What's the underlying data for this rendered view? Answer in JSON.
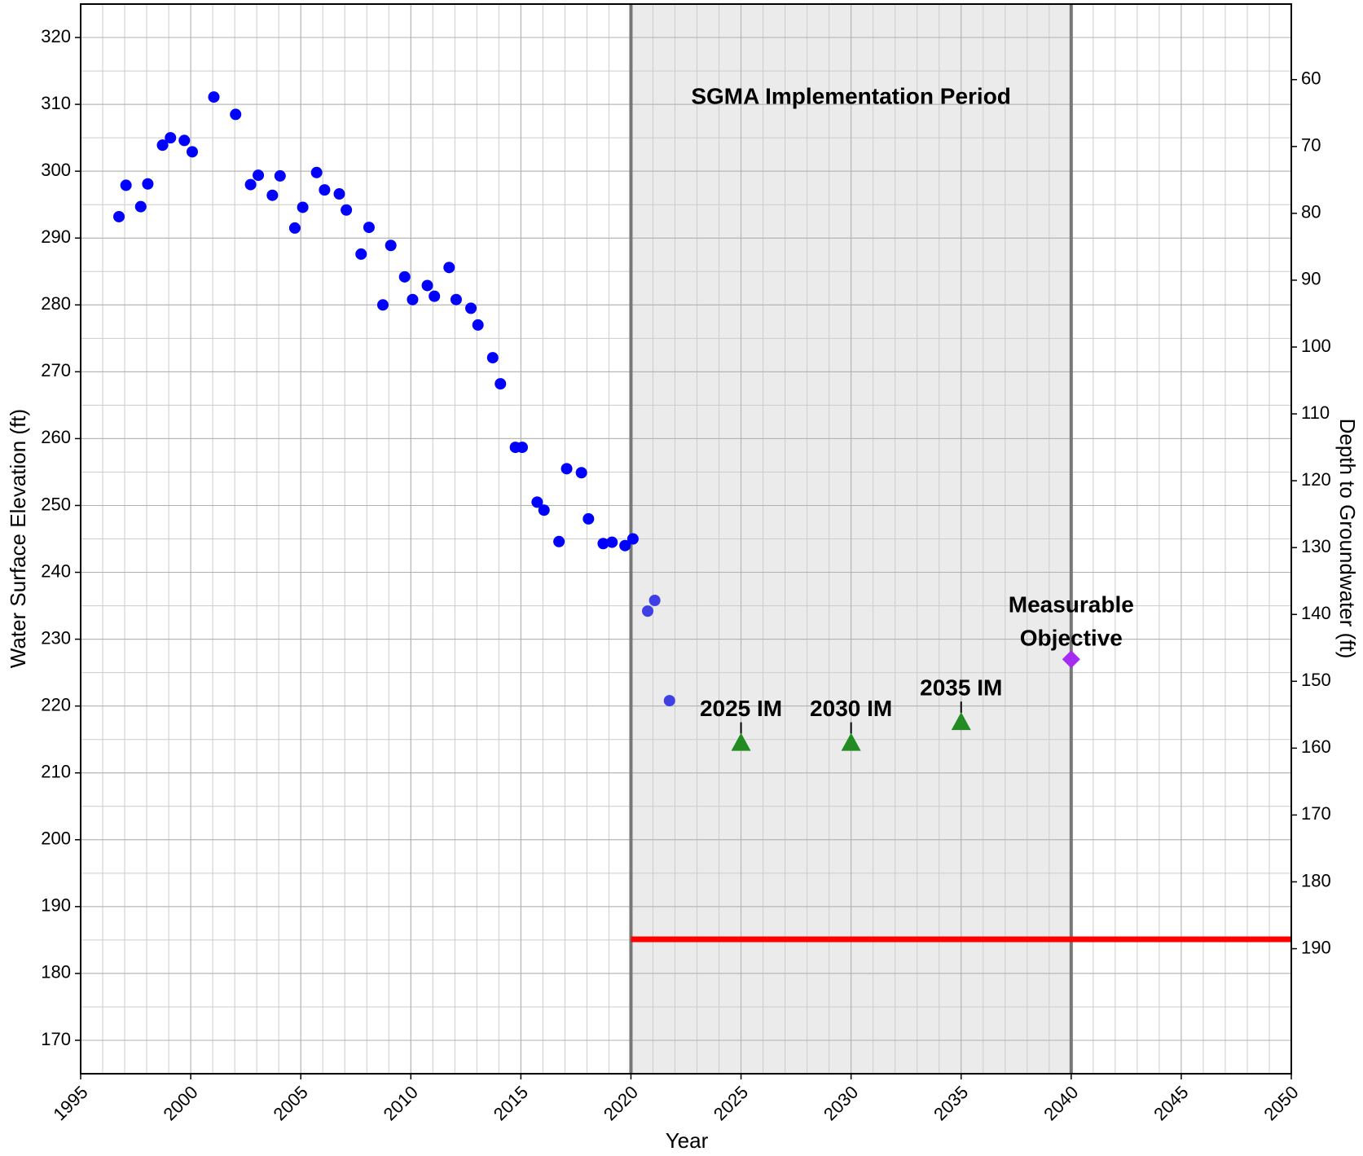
{
  "chart_data": {
    "type": "scatter",
    "xlabel": "Year",
    "ylabel": "Water Surface Elevation (ft)",
    "y2label": "Depth to Groundwater (ft)",
    "xlim": [
      1995,
      2050
    ],
    "ylim": [
      165,
      325
    ],
    "y2lim": [
      48.7,
      208.7
    ],
    "y2_inverted": true,
    "xticks": [
      1995,
      2000,
      2005,
      2010,
      2015,
      2020,
      2025,
      2030,
      2035,
      2040,
      2045,
      2050
    ],
    "yticks": [
      170,
      180,
      190,
      200,
      210,
      220,
      230,
      240,
      250,
      260,
      270,
      280,
      290,
      300,
      310,
      320
    ],
    "y2ticks": [
      60,
      70,
      80,
      90,
      100,
      110,
      120,
      130,
      140,
      150,
      160,
      170,
      180,
      190
    ],
    "grid": true,
    "minor_grid": {
      "x": 1,
      "y": 5
    },
    "series": [
      {
        "color": "#0000ff",
        "x": [
          1996.74,
          1997.06,
          1997.73,
          1998.05,
          1998.72,
          1999.08,
          1999.71,
          2000.07,
          2001.05,
          2002.04,
          2002.72,
          2003.07,
          2003.71,
          2004.06,
          2004.73,
          2005.09,
          2005.72,
          2006.08,
          2006.75,
          2007.07,
          2007.74,
          2008.1,
          2008.73,
          2009.09,
          2009.72,
          2010.08,
          2010.75,
          2011.07,
          2011.74,
          2012.06,
          2012.73,
          2013.05,
          2013.72,
          2014.07,
          2014.75,
          2015.06,
          2015.74,
          2016.05,
          2016.73,
          2017.08,
          2017.75,
          2018.07,
          2018.74,
          2019.14,
          2019.73,
          2020.09
        ],
        "values": [
          293.2,
          297.9,
          294.7,
          298.1,
          303.9,
          305.0,
          304.6,
          302.9,
          311.1,
          308.5,
          298.0,
          299.4,
          296.4,
          299.3,
          291.5,
          294.6,
          299.8,
          297.2,
          296.6,
          294.2,
          287.6,
          291.6,
          280.0,
          288.9,
          284.2,
          280.8,
          282.9,
          281.3,
          285.6,
          280.8,
          279.5,
          277.0,
          272.1,
          268.2,
          258.7,
          258.7,
          250.5,
          249.3,
          244.6,
          255.5,
          254.9,
          248.0,
          244.3,
          244.5,
          244.0,
          245.0
        ]
      },
      {
        "color": "#3f3fe6",
        "x": [
          2020.76,
          2021.08,
          2021.75
        ],
        "values": [
          234.2,
          235.8,
          220.8
        ]
      }
    ],
    "shaded_period": {
      "x": [
        2020,
        2040
      ],
      "label": "SGMA Implementation Period",
      "color": "#ebebeb",
      "edge_color": "#777777"
    },
    "interim_milestones": {
      "x": [
        2025,
        2030,
        2035
      ],
      "values": [
        214.4,
        214.4,
        217.5
      ],
      "labels": [
        "2025 IM",
        "2030 IM",
        "2035 IM"
      ],
      "color": "#228b22"
    },
    "measurable_objective": {
      "x": 2040,
      "value": 227.0,
      "label_lines": [
        "Measurable",
        "Objective"
      ],
      "color": "#a52cf0"
    },
    "minimum_threshold": {
      "x": [
        2020,
        2050
      ],
      "value": 185.1,
      "color": "#ff0000"
    }
  }
}
